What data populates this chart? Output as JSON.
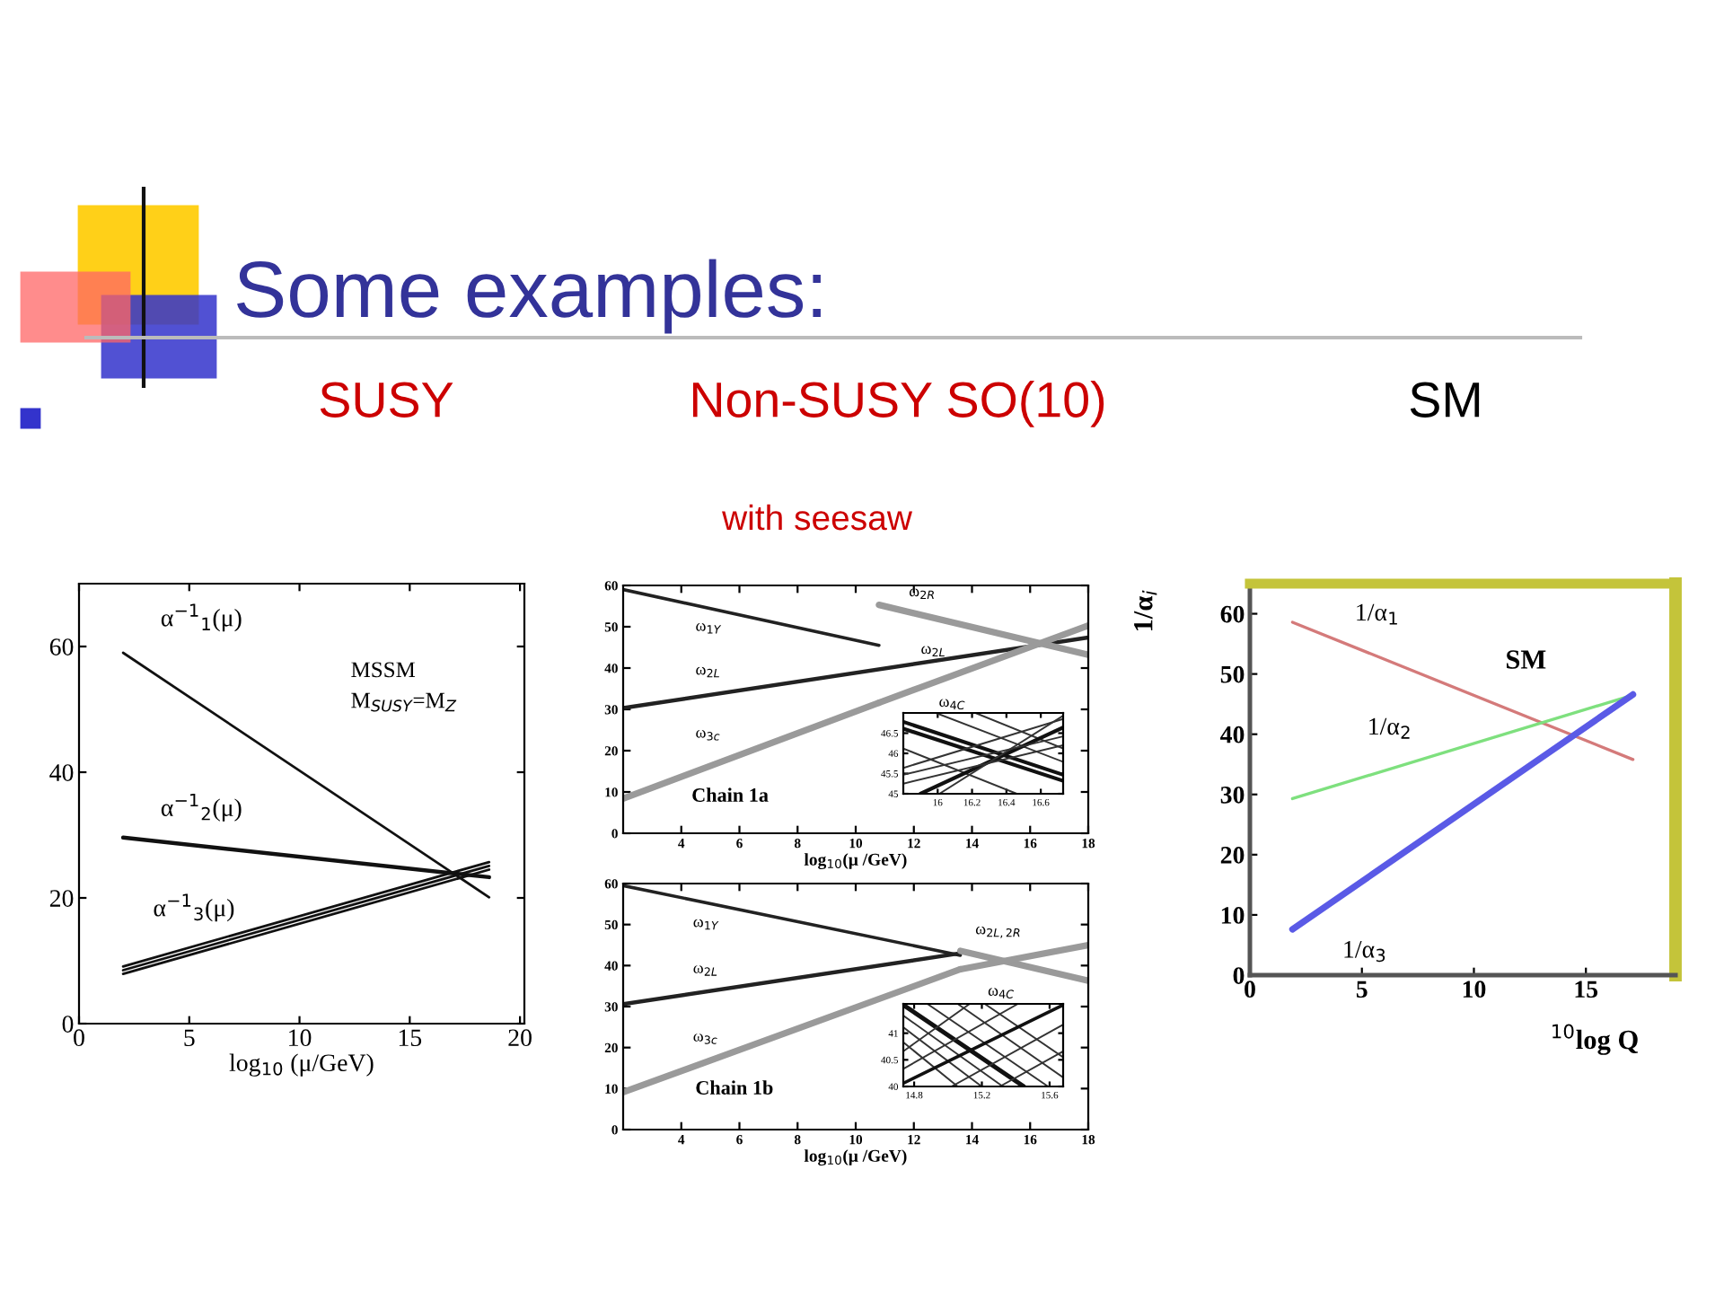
{
  "chart_data": [
    {
      "type": "other",
      "title": "Some examples:"
    },
    {
      "type": "line",
      "title": "SUSY",
      "xlabel": "log$_{10}$ (μ/GeV)",
      "xlim": [
        0,
        20.2
      ],
      "ylim": [
        0,
        70
      ],
      "xticks": [
        0,
        5,
        10,
        15,
        20
      ],
      "yticks": [
        0,
        20,
        40,
        60
      ],
      "annotations": [
        "MSSM",
        "M$_{SUSY}$=M$_{Z}$"
      ],
      "series": [
        {
          "name": "α$^{−1}$$_{1}$(μ)",
          "color": "#111111",
          "x": [
            2,
            18.6
          ],
          "values": [
            59,
            20.1
          ]
        },
        {
          "name": "α$^{−1}$$_{2}$(μ)",
          "color": "#111111",
          "x": [
            2,
            18.6
          ],
          "values": [
            29.6,
            23.3
          ]
        },
        {
          "name": "α$^{−1}$$_{3}$(μ)",
          "color": "#111111",
          "x": [
            2,
            18.6
          ],
          "values": [
            8.5,
            25.1
          ]
        },
        {
          "color": "#111111",
          "x": [
            2,
            18.6
          ],
          "values": [
            7.9,
            24.5
          ]
        },
        {
          "color": "#111111",
          "x": [
            2,
            18.6
          ],
          "values": [
            9.1,
            25.7
          ]
        }
      ]
    },
    {
      "type": "line",
      "title": "Non-SUSY SO(10)",
      "subtitle": "with seesaw",
      "xlabel": "log$_{10}$(μ /GeV)",
      "xlim": [
        2,
        18
      ],
      "ylim": [
        0,
        60
      ],
      "xticks": [
        4,
        6,
        8,
        10,
        12,
        14,
        16,
        18
      ],
      "yticks": [
        0,
        10,
        20,
        30,
        40,
        50,
        60
      ],
      "annotations": [
        "Chain 1a",
        "ω$_{2L}$"
      ],
      "series": [
        {
          "name": "ω$_{1Y}$",
          "color": "#222222",
          "x": [
            2,
            10.8
          ],
          "values": [
            59.0,
            45.5
          ]
        },
        {
          "name": "ω$_{2L}$",
          "color": "#222222",
          "x": [
            2,
            18
          ],
          "values": [
            30.3,
            47.4
          ]
        },
        {
          "name": "ω$_{3c}$",
          "color": "#9a9a9a",
          "x": [
            2,
            10.8
          ],
          "values": [
            8.4,
            31.6
          ]
        },
        {
          "name": "ω$_{2R}$",
          "color": "#9a9a9a",
          "x": [
            10.8,
            18
          ],
          "values": [
            55.3,
            43.2
          ]
        },
        {
          "name": "ω$_{4C}$",
          "color": "#9a9a9a",
          "x": [
            10.8,
            18
          ],
          "values": [
            31.6,
            50.3
          ]
        }
      ]
    },
    {
      "type": "line",
      "xlim": [
        15.8,
        16.73
      ],
      "ylim": [
        45,
        47
      ],
      "xticks": [
        16,
        16.2,
        16.4,
        16.6
      ],
      "yticks": [
        45,
        45.5,
        46,
        46.5
      ],
      "series": [
        {
          "color": "#111111",
          "x": [
            15.8,
            16.73
          ],
          "values": [
            46.78,
            45.47
          ]
        },
        {
          "color": "#111111",
          "x": [
            15.8,
            16.73
          ],
          "values": [
            46.61,
            45.32
          ]
        },
        {
          "color": "#333333",
          "x": [
            15.99,
            16.73
          ],
          "values": [
            47.0,
            45.79
          ]
        },
        {
          "color": "#333333",
          "x": [
            15.8,
            16.46
          ],
          "values": [
            46.12,
            45.0
          ]
        },
        {
          "color": "#333333",
          "x": [
            16.22,
            16.73
          ],
          "values": [
            47.0,
            46.12
          ]
        },
        {
          "color": "#111111",
          "x": [
            15.9,
            16.73
          ],
          "values": [
            45.0,
            46.64
          ]
        },
        {
          "color": "#333333",
          "x": [
            15.8,
            16.73
          ],
          "values": [
            45.64,
            46.85
          ]
        },
        {
          "color": "#333333",
          "x": [
            15.8,
            16.73
          ],
          "values": [
            45.47,
            46.42
          ]
        },
        {
          "color": "#333333",
          "x": [
            15.8,
            16.73
          ],
          "values": [
            45.25,
            46.2
          ]
        },
        {
          "color": "#333333",
          "x": [
            16.01,
            16.73
          ],
          "values": [
            45.0,
            46.93
          ]
        }
      ]
    },
    {
      "type": "line",
      "xlabel": "log$_{10}$(μ /GeV)",
      "xlim": [
        2,
        18
      ],
      "ylim": [
        0,
        60
      ],
      "xticks": [
        4,
        6,
        8,
        10,
        12,
        14,
        16,
        18
      ],
      "yticks": [
        0,
        10,
        20,
        30,
        40,
        50,
        60
      ],
      "annotations": [
        "Chain 1b"
      ],
      "series": [
        {
          "name": "ω$_{1Y}$",
          "color": "#222222",
          "x": [
            2,
            13.6
          ],
          "values": [
            59.5,
            42.5
          ]
        },
        {
          "name": "ω$_{2L}$",
          "color": "#222222",
          "x": [
            2,
            13.6
          ],
          "values": [
            30.6,
            43.0
          ]
        },
        {
          "name": "ω$_{3c}$",
          "color": "#9a9a9a",
          "x": [
            2,
            13.6
          ],
          "values": [
            9.1,
            39.1
          ]
        },
        {
          "name": "ω$_{2L,2R}$",
          "color": "#9a9a9a",
          "x": [
            13.6,
            18
          ],
          "values": [
            43.6,
            36.3
          ]
        },
        {
          "name": "ω$_{4C}$",
          "color": "#9a9a9a",
          "x": [
            13.6,
            18
          ],
          "values": [
            39.1,
            45.0
          ]
        }
      ]
    },
    {
      "type": "line",
      "xlim": [
        14.736,
        15.68
      ],
      "ylim": [
        40,
        41.55
      ],
      "xticks": [
        14.8,
        15.2,
        15.6
      ],
      "yticks": [
        40,
        40.5,
        41
      ],
      "series": [
        {
          "color": "#111111",
          "x": [
            14.736,
            15.448
          ],
          "values": [
            41.53,
            40.0
          ]
        },
        {
          "color": "#333333",
          "x": [
            14.736,
            15.324
          ],
          "values": [
            41.33,
            40.0
          ]
        },
        {
          "color": "#333333",
          "x": [
            14.736,
            15.199
          ],
          "values": [
            41.11,
            40.0
          ]
        },
        {
          "color": "#333333",
          "x": [
            14.736,
            15.057
          ],
          "values": [
            40.83,
            40.0
          ]
        },
        {
          "color": "#333333",
          "x": [
            14.878,
            15.591
          ],
          "values": [
            41.55,
            40.0
          ]
        },
        {
          "color": "#333333",
          "x": [
            15.057,
            15.68
          ],
          "values": [
            41.55,
            40.17
          ]
        },
        {
          "color": "#333333",
          "x": [
            15.217,
            15.68
          ],
          "values": [
            41.55,
            40.55
          ]
        },
        {
          "color": "#111111",
          "x": [
            14.736,
            15.68
          ],
          "values": [
            40.06,
            41.53
          ]
        },
        {
          "color": "#333333",
          "x": [
            14.736,
            15.413
          ],
          "values": [
            40.33,
            41.55
          ]
        },
        {
          "color": "#333333",
          "x": [
            14.736,
            15.128
          ],
          "values": [
            40.66,
            41.55
          ]
        },
        {
          "color": "#333333",
          "x": [
            15.021,
            15.68
          ],
          "values": [
            40.0,
            41.16
          ]
        },
        {
          "color": "#333333",
          "x": [
            15.306,
            15.68
          ],
          "values": [
            40.0,
            40.66
          ]
        }
      ]
    },
    {
      "type": "line",
      "title": "SM",
      "xlabel": "$^{10}$log Q",
      "ylabel": "1/α$_{i}$",
      "xlim": [
        0,
        19
      ],
      "ylim": [
        0,
        65
      ],
      "xticks": [
        0,
        5,
        10,
        15
      ],
      "yticks": [
        0,
        10,
        20,
        30,
        40,
        50,
        60
      ],
      "annotations": [
        "SM"
      ],
      "series": [
        {
          "name": "1/α$_{1}$",
          "color": "#d47a7a",
          "x": [
            1.9,
            17.1
          ],
          "values": [
            58.6,
            35.8
          ]
        },
        {
          "name": "1/α$_{2}$",
          "color": "#7ee07e",
          "x": [
            1.9,
            17.1
          ],
          "values": [
            29.3,
            46.5
          ]
        },
        {
          "name": "1/α$_{3}$",
          "color": "#5a5ae6",
          "x": [
            1.9,
            17.1
          ],
          "values": [
            7.6,
            46.6
          ]
        }
      ]
    }
  ]
}
